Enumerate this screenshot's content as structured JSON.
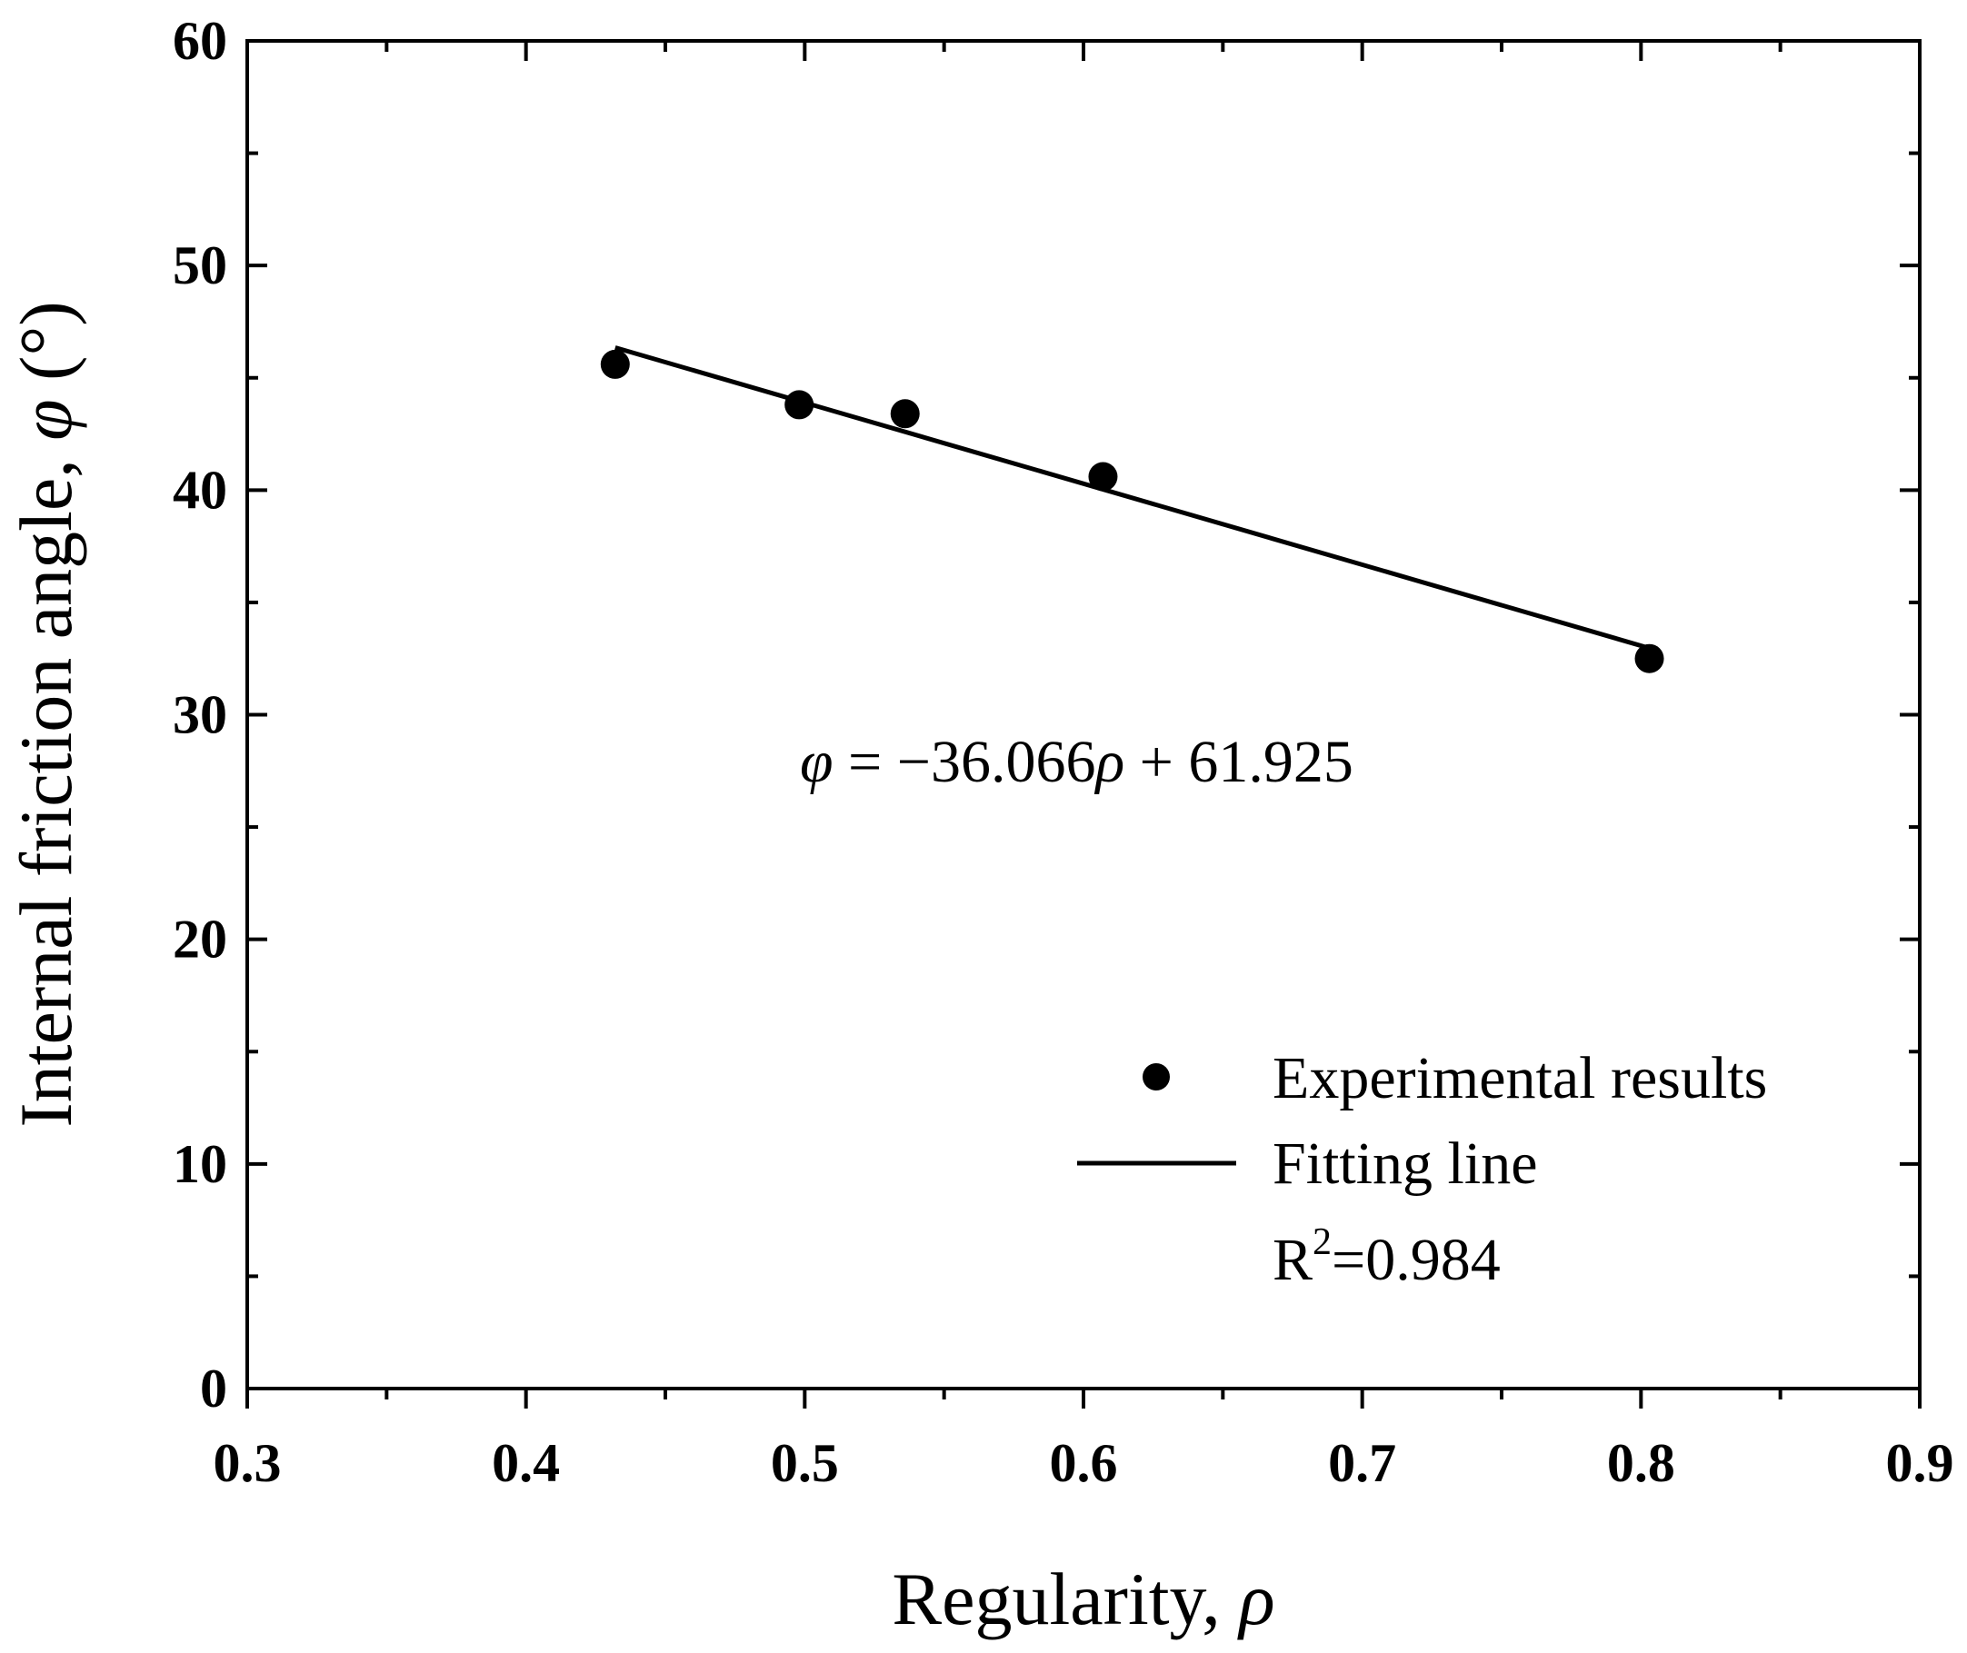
{
  "chart_data": {
    "type": "scatter",
    "title": "",
    "xlabel": "Regularity, ",
    "xlabel_symbol": "ρ",
    "ylabel": "Internal friction angle, ",
    "ylabel_symbol": "φ",
    "ylabel_unit": " (°)",
    "xlim": [
      0.3,
      0.9
    ],
    "ylim": [
      0,
      60
    ],
    "x_ticks": [
      0.3,
      0.4,
      0.5,
      0.6,
      0.7,
      0.8,
      0.9
    ],
    "x_tick_labels": [
      "0.3",
      "0.4",
      "0.5",
      "0.6",
      "0.7",
      "0.8",
      "0.9"
    ],
    "y_ticks": [
      0,
      10,
      20,
      30,
      40,
      50,
      60
    ],
    "y_tick_labels": [
      "0",
      "10",
      "20",
      "30",
      "40",
      "50",
      "60"
    ],
    "grid": false,
    "series": [
      {
        "name": "Experimental results",
        "kind": "scatter",
        "color": "#000000",
        "x": [
          0.432,
          0.498,
          0.536,
          0.607,
          0.803
        ],
        "y": [
          45.6,
          43.8,
          43.4,
          40.6,
          32.5
        ]
      },
      {
        "name": "Fitting line",
        "kind": "line",
        "color": "#000000",
        "slope": -36.066,
        "intercept": 61.925,
        "x_range": [
          0.432,
          0.803
        ]
      }
    ],
    "annotation": {
      "lhs": "φ",
      "eq_mid": " = −36.066",
      "rho": "ρ",
      "eq_end": " + 61.925"
    },
    "legend": {
      "position": "bottom-right",
      "items": [
        "Experimental results",
        "Fitting line"
      ],
      "r2_label": "R",
      "r2_sup": "2",
      "r2_value": "=0.984"
    }
  }
}
